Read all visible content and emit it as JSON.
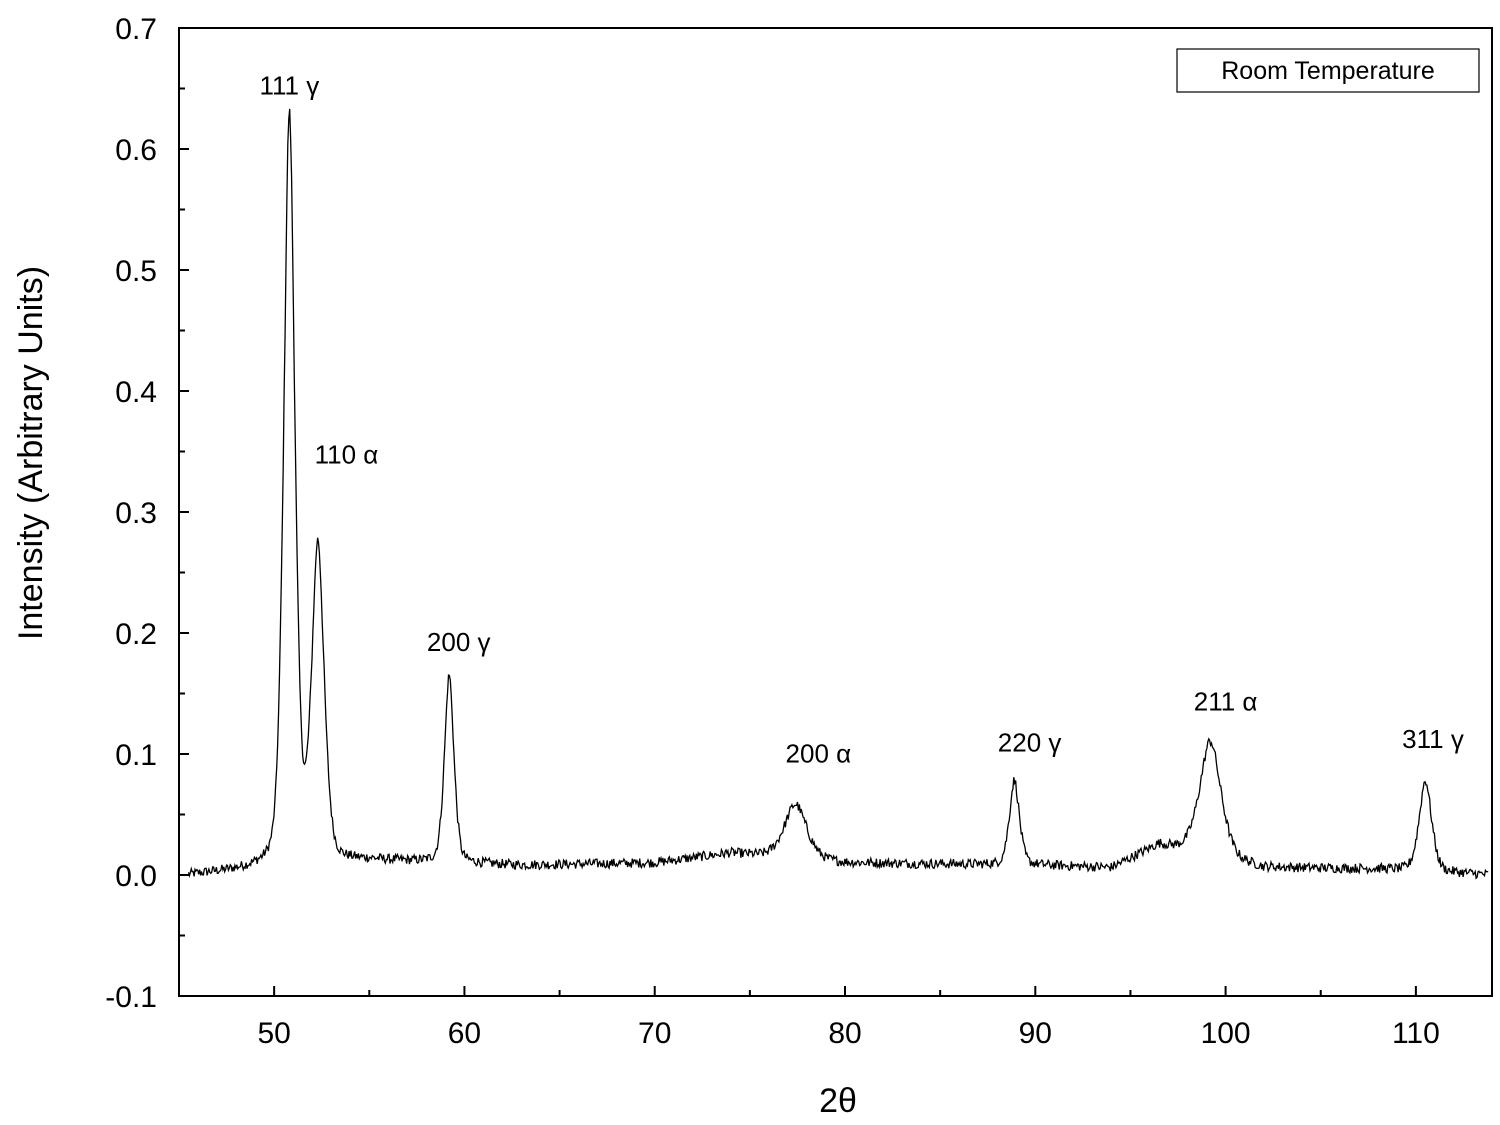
{
  "chart_data": {
    "type": "line",
    "title": "",
    "xlabel": "2θ",
    "ylabel": "Intensity (Arbitrary Units)",
    "xlim": [
      45,
      114
    ],
    "ylim": [
      -0.1,
      0.7
    ],
    "x_ticks": [
      50,
      60,
      70,
      80,
      90,
      100,
      110
    ],
    "x_tick_labels": [
      "50",
      "60",
      "70",
      "80",
      "90",
      "100",
      "110"
    ],
    "y_ticks": [
      -0.1,
      0.0,
      0.1,
      0.2,
      0.3,
      0.4,
      0.5,
      0.6,
      0.7
    ],
    "y_tick_labels": [
      "-0.1",
      "0.0",
      "0.1",
      "0.2",
      "0.3",
      "0.4",
      "0.5",
      "0.6",
      "0.7"
    ],
    "grid": false,
    "legend": {
      "text": "Room Temperature",
      "position": "top-right"
    },
    "line_color": "#000000",
    "noise_amplitude": 0.004,
    "baseline": [
      {
        "x": 45.5,
        "y": 0.0
      },
      {
        "x": 49.0,
        "y": 0.005
      },
      {
        "x": 55.0,
        "y": 0.012
      },
      {
        "x": 63.0,
        "y": 0.008
      },
      {
        "x": 70.0,
        "y": 0.01
      },
      {
        "x": 74.0,
        "y": 0.018
      },
      {
        "x": 80.0,
        "y": 0.01
      },
      {
        "x": 90.0,
        "y": 0.008
      },
      {
        "x": 94.0,
        "y": 0.006
      },
      {
        "x": 96.5,
        "y": 0.025
      },
      {
        "x": 102.0,
        "y": 0.006
      },
      {
        "x": 108.0,
        "y": 0.005
      },
      {
        "x": 114.0,
        "y": 0.0
      }
    ],
    "peaks": [
      {
        "label": "111 γ",
        "x": 50.8,
        "height": 0.62,
        "width": 0.45
      },
      {
        "label": "110 α",
        "x": 52.3,
        "height": 0.26,
        "width": 0.5
      },
      {
        "label": "200 γ",
        "x": 59.2,
        "height": 0.155,
        "width": 0.38
      },
      {
        "label": "200 α",
        "x": 77.4,
        "height": 0.045,
        "width": 0.9
      },
      {
        "label": "220 γ",
        "x": 88.9,
        "height": 0.07,
        "width": 0.4
      },
      {
        "label": "211 α",
        "x": 99.2,
        "height": 0.095,
        "width": 0.85
      },
      {
        "label": "311 γ",
        "x": 110.5,
        "height": 0.075,
        "width": 0.5
      }
    ],
    "peak_labels": [
      {
        "text": "111 γ",
        "x": 50.8,
        "y": 0.645
      },
      {
        "text": "110 α",
        "x": 53.8,
        "y": 0.34
      },
      {
        "text": "200 γ",
        "x": 59.7,
        "y": 0.185
      },
      {
        "text": "200 α",
        "x": 78.6,
        "y": 0.093
      },
      {
        "text": "220 γ",
        "x": 89.7,
        "y": 0.102
      },
      {
        "text": "211 α",
        "x": 100.0,
        "y": 0.136
      },
      {
        "text": "311 γ",
        "x": 110.9,
        "y": 0.105
      }
    ]
  }
}
